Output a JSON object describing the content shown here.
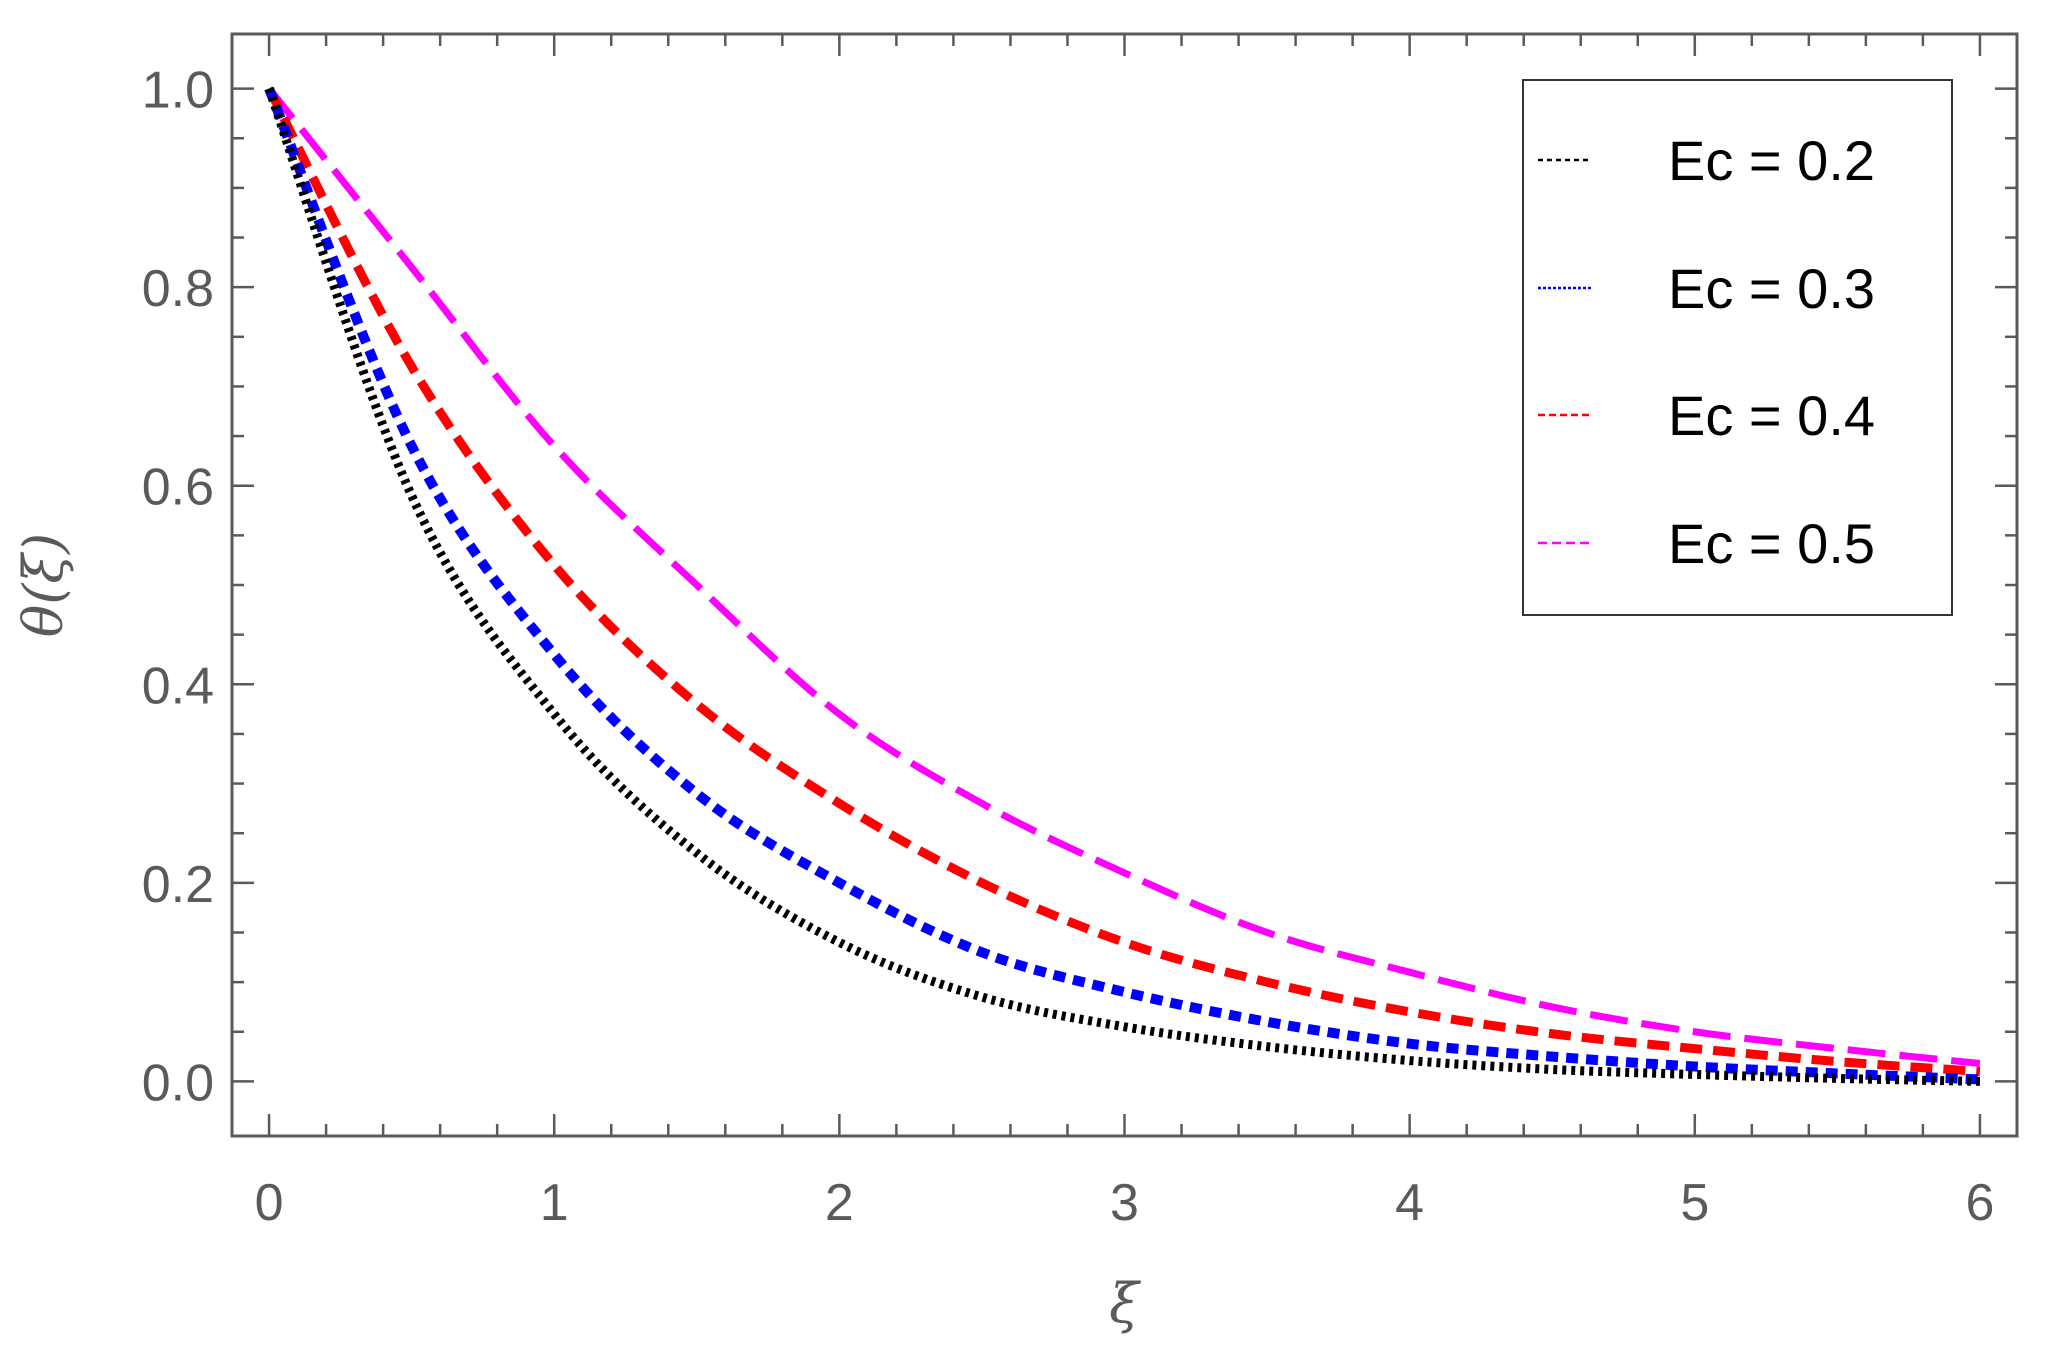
{
  "chart_data": {
    "type": "line",
    "title": "",
    "xlabel": "ξ",
    "ylabel": "θ(ξ)",
    "xlim": [
      -0.13,
      6.13
    ],
    "ylim": [
      -0.055,
      1.055
    ],
    "xticks": [
      0,
      1,
      2,
      3,
      4,
      5,
      6
    ],
    "xtick_labels": [
      "0",
      "1",
      "2",
      "3",
      "4",
      "5",
      "6"
    ],
    "yticks": [
      0.0,
      0.2,
      0.4,
      0.6,
      0.8,
      1.0
    ],
    "ytick_labels": [
      "0.0",
      "0.2",
      "0.4",
      "0.6",
      "0.8",
      "1.0"
    ],
    "grid": false,
    "legend_position": "top-right",
    "x": [
      0,
      0.5,
      1,
      1.5,
      2,
      2.5,
      3,
      3.5,
      4,
      4.5,
      5,
      5.5,
      6
    ],
    "series": [
      {
        "name": "Ec = 0.2",
        "color": "#000000",
        "dash": "dotted",
        "values": [
          1.0,
          0.59,
          0.37,
          0.23,
          0.14,
          0.085,
          0.055,
          0.035,
          0.021,
          0.012,
          0.007,
          0.003,
          0.0
        ]
      },
      {
        "name": "Ec = 0.3",
        "color": "#0000ff",
        "dash": "short-dash",
        "values": [
          1.0,
          0.64,
          0.43,
          0.29,
          0.2,
          0.13,
          0.09,
          0.06,
          0.038,
          0.025,
          0.015,
          0.008,
          0.002
        ]
      },
      {
        "name": "Ec = 0.4",
        "color": "#ff0000",
        "dash": "medium-dash",
        "values": [
          1.0,
          0.72,
          0.52,
          0.38,
          0.28,
          0.2,
          0.14,
          0.1,
          0.07,
          0.048,
          0.033,
          0.02,
          0.01
        ]
      },
      {
        "name": "Ec = 0.5",
        "color": "#ff00ff",
        "dash": "long-dash",
        "values": [
          1.0,
          0.82,
          0.64,
          0.5,
          0.37,
          0.28,
          0.21,
          0.15,
          0.11,
          0.075,
          0.05,
          0.033,
          0.018
        ]
      }
    ]
  }
}
